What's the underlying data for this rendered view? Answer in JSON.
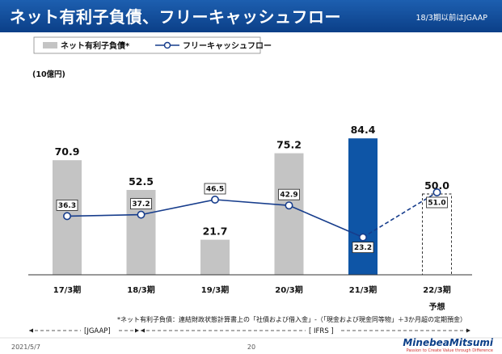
{
  "header": {
    "title": "ネット有利子負債、フリーキャッシュフロー",
    "note": "18/3期以前はJGAAP"
  },
  "colors": {
    "title_bar": "#0b3f88",
    "bar_gray": "#c4c4c4",
    "bar_highlight": "#0e55a6",
    "line": "#173d8c",
    "marker_fill": "#ffffff"
  },
  "chart_data": {
    "type": "bar",
    "categories": [
      "17/3期",
      "18/3期",
      "19/3期",
      "20/3期",
      "21/3期",
      "22/3期"
    ],
    "forecast_category_note": "予想",
    "unit": "(10億円)",
    "series": [
      {
        "name": "ネット有利子負債",
        "name_suffix": "*",
        "kind": "bar",
        "values": [
          70.9,
          52.5,
          21.7,
          75.2,
          84.4,
          50.0
        ],
        "labels": [
          "70.9",
          "52.5",
          "21.7",
          "75.2",
          "84.4",
          "50.0"
        ],
        "highlight_index": 4,
        "forecast_index": 5
      },
      {
        "name": "フリーキャッシュフロー",
        "kind": "line",
        "values": [
          36.3,
          37.2,
          46.5,
          42.9,
          23.2,
          51.0
        ],
        "labels": [
          "36.3",
          "37.2",
          "46.5",
          "42.9",
          "23.2",
          "51.0"
        ],
        "forecast_index": 5
      }
    ],
    "ylim": [
      0,
      105
    ],
    "grid": false,
    "legend": "top-left"
  },
  "footnote": "*ネット有利子負債：連結財政状態計算書上の「社債および借入金」-（「現金および現金同等物」＋3か月超の定期預金）",
  "eras": {
    "jgaap": "[JGAAP]",
    "ifrs": "[ IFRS ]"
  },
  "footer": {
    "date": "2021/5/7",
    "page": "20",
    "logo": "MinebeaMitsumi",
    "tagline": "Passion to Create Value through Difference"
  }
}
